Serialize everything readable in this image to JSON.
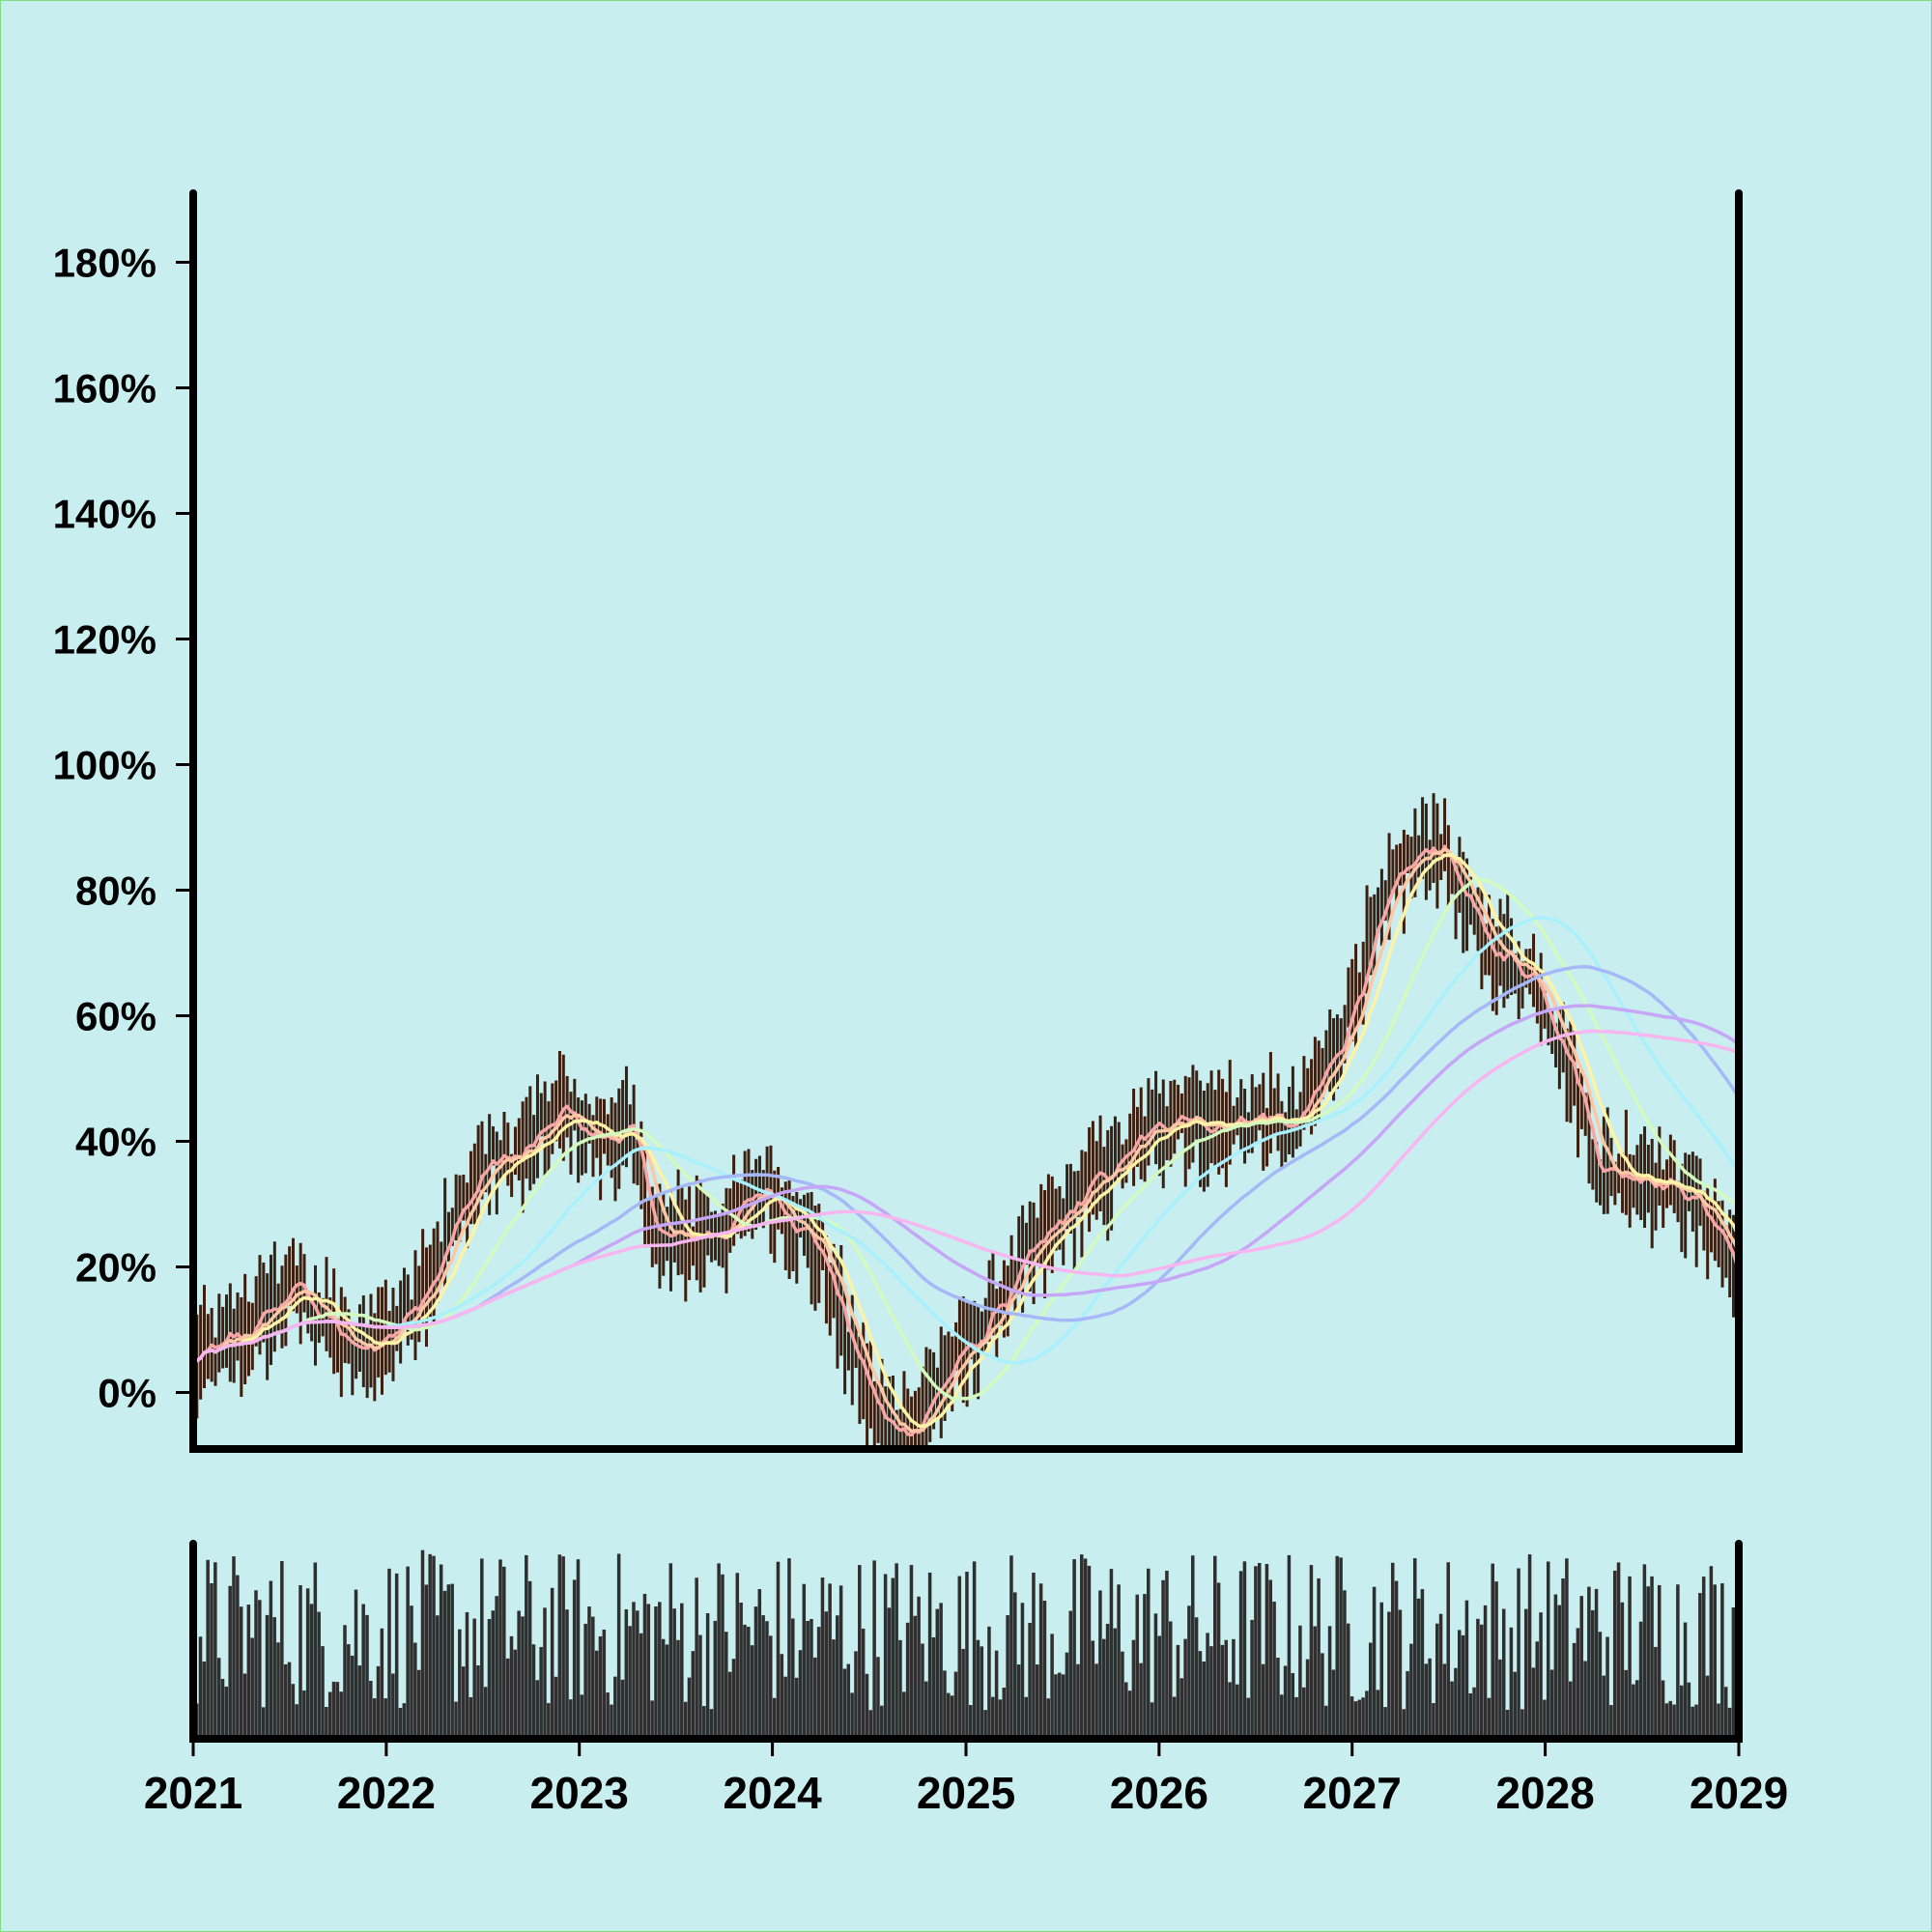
{
  "chart_data": {
    "type": "line",
    "title": "",
    "xlabel": "",
    "ylabel": "",
    "x_tick_labels": [
      "2021",
      "2022",
      "2023",
      "2024",
      "2025",
      "2026",
      "2027",
      "2028",
      "2029"
    ],
    "y_tick_labels": [
      "0%",
      "20%",
      "40%",
      "60%",
      "80%",
      "100%",
      "120%",
      "140%",
      "160%",
      "180%"
    ],
    "xlim": [
      "2021-01-01",
      "2029-01-01"
    ],
    "ylim": [
      -9,
      191
    ],
    "grid": false,
    "legend": "none",
    "colors": {
      "background": "#c9eeef",
      "axes": "#000000",
      "bars": "#3b1f10",
      "volume": "#2f2f2f"
    },
    "price_keypoints": [
      [
        "2021-01-01",
        5
      ],
      [
        "2021-04-01",
        9
      ],
      [
        "2021-07-15",
        17
      ],
      [
        "2021-11-01",
        6
      ],
      [
        "2022-01-15",
        10
      ],
      [
        "2022-04-01",
        20
      ],
      [
        "2022-07-01",
        36
      ],
      [
        "2022-09-15",
        38
      ],
      [
        "2022-12-01",
        45
      ],
      [
        "2023-02-01",
        40
      ],
      [
        "2023-04-01",
        42
      ],
      [
        "2023-06-01",
        24
      ],
      [
        "2023-08-01",
        25
      ],
      [
        "2023-10-01",
        26
      ],
      [
        "2023-12-15",
        33
      ],
      [
        "2024-02-15",
        27
      ],
      [
        "2024-04-01",
        22
      ],
      [
        "2024-06-01",
        6
      ],
      [
        "2024-08-01",
        -6
      ],
      [
        "2024-10-01",
        -5
      ],
      [
        "2024-11-15",
        2
      ],
      [
        "2025-01-15",
        8
      ],
      [
        "2025-04-01",
        18
      ],
      [
        "2025-06-01",
        25
      ],
      [
        "2025-08-15",
        32
      ],
      [
        "2025-11-01",
        38
      ],
      [
        "2026-02-01",
        45
      ],
      [
        "2026-04-15",
        42
      ],
      [
        "2026-07-01",
        44
      ],
      [
        "2026-09-15",
        42
      ],
      [
        "2026-12-01",
        55
      ],
      [
        "2027-02-01",
        70
      ],
      [
        "2027-04-01",
        83
      ],
      [
        "2027-06-15",
        88
      ],
      [
        "2027-08-15",
        75
      ],
      [
        "2027-10-01",
        70
      ],
      [
        "2027-12-15",
        66
      ],
      [
        "2028-02-15",
        52
      ],
      [
        "2028-04-15",
        35
      ],
      [
        "2028-07-01",
        35
      ],
      [
        "2028-09-15",
        32
      ],
      [
        "2028-11-15",
        27
      ],
      [
        "2029-01-01",
        18
      ]
    ],
    "moving_averages": [
      {
        "color": "#f7a6a6",
        "window_weeks": 4,
        "width": 3.5
      },
      {
        "color": "#fbc7a4",
        "window_weeks": 8,
        "width": 3.5
      },
      {
        "color": "#fdf3a6",
        "window_weeks": 13,
        "width": 3.5
      },
      {
        "color": "#d4fbbf",
        "window_weeks": 30,
        "width": 3.5
      },
      {
        "color": "#a9f0fd",
        "window_weeks": 52,
        "width": 3.5
      },
      {
        "color": "#a6b8f7",
        "window_weeks": 78,
        "width": 3.5
      },
      {
        "color": "#c6a6f7",
        "window_weeks": 104,
        "width": 3.5
      },
      {
        "color": "#f7b6ef",
        "window_weeks": 130,
        "width": 3.5
      }
    ],
    "volume_range": [
      0,
      100
    ]
  }
}
